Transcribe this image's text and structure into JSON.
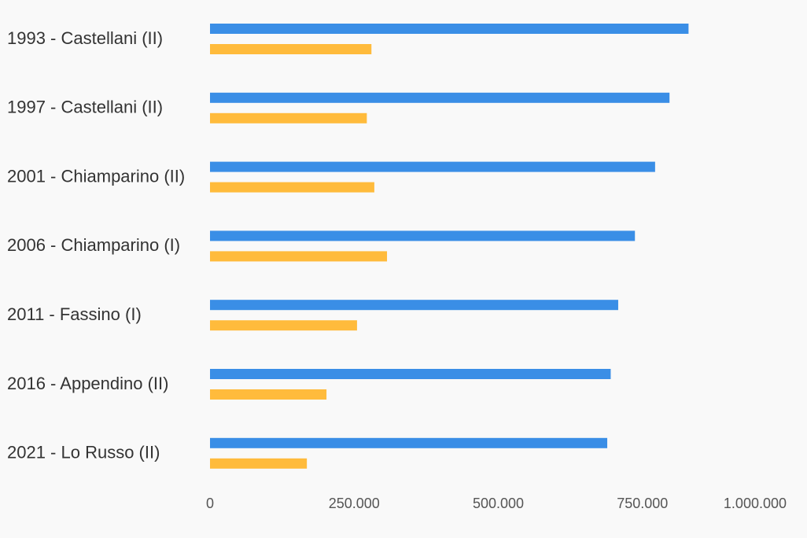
{
  "chart_data": {
    "type": "bar",
    "orientation": "horizontal",
    "categories": [
      "1993 - Castellani (II)",
      "1997 - Castellani (II)",
      "2001 - Chiamparino (II)",
      "2006 - Chiamparino (I)",
      "2011 - Fassino (I)",
      "2016 - Appendino (II)",
      "2021 - Lo Russo (II)"
    ],
    "series": [
      {
        "color": "#3a8ee6",
        "values": [
          830000,
          797000,
          772000,
          737000,
          708000,
          695000,
          689000
        ]
      },
      {
        "color": "#ffbb3c",
        "values": [
          280000,
          272000,
          285000,
          307000,
          255000,
          202000,
          168000
        ]
      }
    ],
    "xlim": [
      0,
      1000000
    ],
    "xticks": [
      0,
      250000,
      500000,
      750000,
      1000000
    ],
    "xtick_labels": [
      "0",
      "250.000",
      "500.000",
      "750.000",
      "1.000.000"
    ],
    "grid": false,
    "legend": "none"
  }
}
